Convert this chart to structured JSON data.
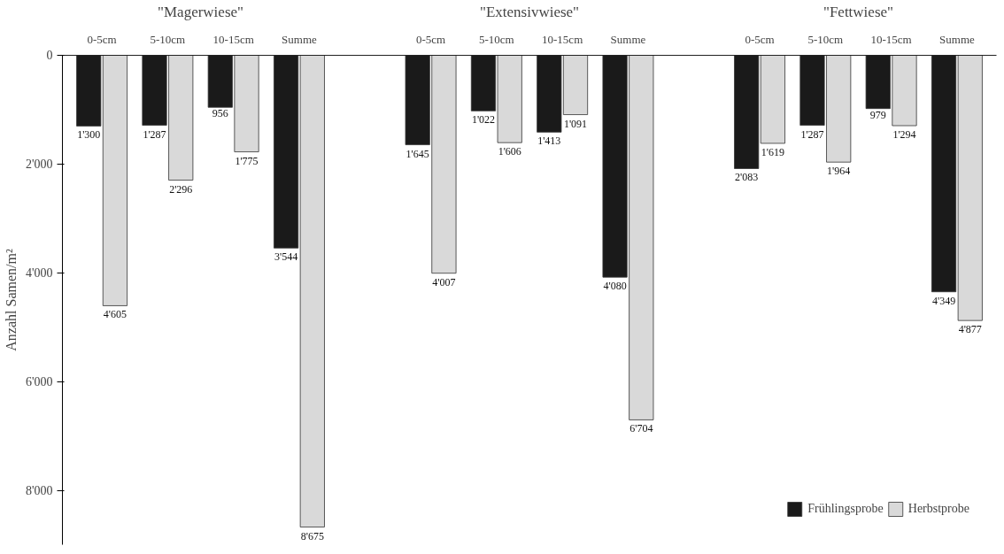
{
  "chart_data": {
    "type": "bar",
    "ylabel": "Anzahl Samen/m²",
    "annotations": [
      "\"Magerwiese\"",
      "\"Extensivwiese\"",
      "\"Fettwiese\""
    ],
    "categories": [
      "0-5cm",
      "5-10cm",
      "10-15cm",
      "Summe",
      null,
      "0-5cm",
      "5-10cm",
      "10-15cm",
      "Summe",
      null,
      "0-5cm",
      "5-10cm",
      "10-15cm",
      "Summe"
    ],
    "series": [
      {
        "name": "Frühlingsprobe",
        "color": "#1a1a1a",
        "values": [
          1300,
          1287,
          956,
          3544,
          null,
          1645,
          1022,
          1413,
          4080,
          null,
          2083,
          1287,
          979,
          4349
        ],
        "value_labels": [
          "1'300",
          "1'287",
          "956",
          "3'544",
          null,
          "1'645",
          "1'022",
          "1'413",
          "4'080",
          null,
          "2'083",
          "1'287",
          "979",
          "4'349"
        ]
      },
      {
        "name": "Herbstprobe",
        "color": "#d9d9d9",
        "values": [
          4605,
          2296,
          1775,
          8675,
          null,
          4007,
          1606,
          1091,
          6704,
          null,
          1619,
          1964,
          1294,
          4877
        ],
        "value_labels": [
          "4'605",
          "2'296",
          "1'775",
          "8'675",
          null,
          "4'007",
          "1'606",
          "1'091",
          "6'704",
          null,
          "1'619",
          "1'964",
          "1'294",
          "4'877"
        ]
      }
    ],
    "ylim": [
      9000,
      0
    ],
    "yticks": [
      {
        "value": 0,
        "label": "0"
      },
      {
        "value": 2000,
        "label": "2'000"
      },
      {
        "value": 4000,
        "label": "4'000"
      },
      {
        "value": 6000,
        "label": "6'000"
      },
      {
        "value": 8000,
        "label": "8'000"
      }
    ],
    "grid": false,
    "legend": "bottom right"
  }
}
